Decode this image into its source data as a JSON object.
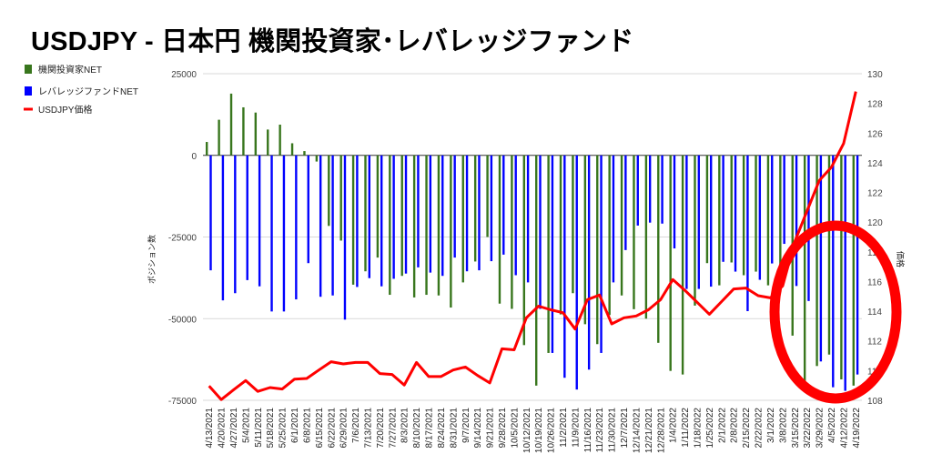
{
  "title": "USDJPY - 日本円 機関投資家･レバレッジファンド",
  "chart_data": {
    "type": "bar+line",
    "title": "USDJPY - 日本円 機関投資家･レバレッジファンド",
    "ylabel_left": "ポジション数",
    "ylabel_right": "価格",
    "ylim_left": [
      -75000,
      25000
    ],
    "yticks_left": [
      25000,
      0,
      -25000,
      -50000,
      -75000
    ],
    "ylim_right": [
      108,
      130
    ],
    "yticks_right": [
      130,
      128,
      126,
      124,
      122,
      120,
      118,
      116,
      114,
      112,
      110,
      108
    ],
    "legend_position": "left",
    "categories": [
      "4/13/2021",
      "4/20/2021",
      "4/27/2021",
      "5/4/2021",
      "5/11/2021",
      "5/18/2021",
      "5/25/2021",
      "6/1/2021",
      "6/8/2021",
      "6/15/2021",
      "6/22/2021",
      "6/29/2021",
      "7/6/2021",
      "7/13/2021",
      "7/20/2021",
      "7/27/2021",
      "8/3/2021",
      "8/10/2021",
      "8/17/2021",
      "8/24/2021",
      "8/31/2021",
      "9/7/2021",
      "9/14/2021",
      "9/21/2021",
      "9/28/2021",
      "10/5/2021",
      "10/12/2021",
      "10/19/2021",
      "10/26/2021",
      "11/2/2021",
      "11/9/2021",
      "11/16/2021",
      "11/23/2021",
      "11/30/2021",
      "12/7/2021",
      "12/14/2021",
      "12/21/2021",
      "12/28/2021",
      "1/4/2022",
      "1/11/2022",
      "1/18/2022",
      "1/25/2022",
      "2/1/2022",
      "2/8/2022",
      "2/15/2022",
      "2/22/2022",
      "3/1/2022",
      "3/8/2022",
      "3/15/2022",
      "3/22/2022",
      "3/29/2022",
      "4/5/2022",
      "4/12/2022",
      "4/19/2022"
    ],
    "series": [
      {
        "name": "機関投資家NET",
        "type": "bar",
        "axis": "left",
        "color": "#38761d",
        "values": [
          4100,
          10900,
          18900,
          14700,
          13100,
          7900,
          9400,
          3700,
          1300,
          -1900,
          -21600,
          -26100,
          -39600,
          -35500,
          -31300,
          -42700,
          -36900,
          -43500,
          -42700,
          -42900,
          -46600,
          -38900,
          -32500,
          -25000,
          -45400,
          -47000,
          -58100,
          -70500,
          -60500,
          -48700,
          -42200,
          -51700,
          -57800,
          -48900,
          -42900,
          -47100,
          -50000,
          -57400,
          -66000,
          -67100,
          -46000,
          -33000,
          -39800,
          -32800,
          -36700,
          -35600,
          -39800,
          -41900,
          -55200,
          -69700,
          -64500,
          -61000,
          -68600,
          -70500
        ]
      },
      {
        "name": "レバレッジファンドNET",
        "type": "bar",
        "axis": "left",
        "color": "#0000ff",
        "values": [
          -35200,
          -44400,
          -42200,
          -38200,
          -40100,
          -47800,
          -47800,
          -44100,
          -33000,
          -43300,
          -42900,
          -50300,
          -40300,
          -37600,
          -40100,
          -37800,
          -36200,
          -34300,
          -35900,
          -36900,
          -31300,
          -35500,
          -35200,
          -32400,
          -30400,
          -36700,
          -38900,
          -47000,
          -60500,
          -68100,
          -71700,
          -65600,
          -60500,
          -38900,
          -29000,
          -21500,
          -20600,
          -20900,
          -28500,
          -40900,
          -40900,
          -40200,
          -32600,
          -35600,
          -47700,
          -38100,
          -33100,
          -27100,
          -40000,
          -44600,
          -63100,
          -71000,
          -72100,
          -67100
        ]
      },
      {
        "name": "USDJPY価格",
        "type": "line",
        "axis": "right",
        "color": "#ff0000",
        "values": [
          108.97,
          108.05,
          108.7,
          109.33,
          108.6,
          108.86,
          108.76,
          109.43,
          109.47,
          110.04,
          110.6,
          110.45,
          110.55,
          110.55,
          109.8,
          109.74,
          109.03,
          110.55,
          109.6,
          109.6,
          110.04,
          110.24,
          109.67,
          109.17,
          111.47,
          111.4,
          113.56,
          114.34,
          114.1,
          113.9,
          112.8,
          114.78,
          115.09,
          113.15,
          113.56,
          113.68,
          114.1,
          114.78,
          116.13,
          115.4,
          114.6,
          113.8,
          114.65,
          115.5,
          115.56,
          115.05,
          114.9,
          115.7,
          118.7,
          120.75,
          122.8,
          123.7,
          125.3,
          128.8
        ]
      }
    ],
    "annotation": {
      "shape": "ellipse",
      "color": "#ff0000",
      "highlights": [
        "3/15/2022",
        "3/22/2022",
        "3/29/2022",
        "4/5/2022",
        "4/12/2022",
        "4/19/2022"
      ]
    }
  }
}
